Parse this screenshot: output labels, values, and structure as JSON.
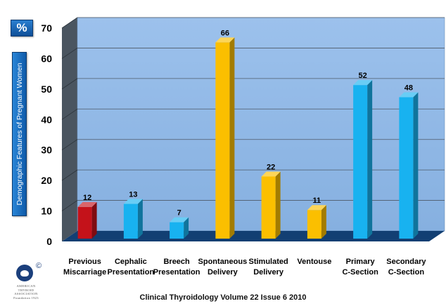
{
  "header": {
    "percent_label": "%"
  },
  "chart_data": {
    "type": "bar",
    "ylabel": "Demographic Features of Pregnant Women",
    "ylim": [
      0,
      70
    ],
    "yticks": [
      0,
      10,
      20,
      30,
      40,
      50,
      60,
      70
    ],
    "grid": true,
    "categories": [
      [
        "Previous",
        "Miscarriage"
      ],
      [
        "Cephalic",
        "Presentation"
      ],
      [
        "Breech",
        "Presentation"
      ],
      [
        "Spontaneous",
        "Delivery"
      ],
      [
        "Stimulated",
        "Delivery"
      ],
      [
        "Ventouse"
      ],
      [
        "Primary",
        "C-Section"
      ],
      [
        "Secondary",
        "C-Section"
      ]
    ],
    "values": [
      12,
      13,
      7,
      66,
      22,
      11,
      52,
      48
    ],
    "bar_colors": [
      "#c4121a",
      "#18b2f0",
      "#18b2f0",
      "#fbbf00",
      "#fbbf00",
      "#fbbf00",
      "#18b2f0",
      "#18b2f0"
    ],
    "plot_colors": {
      "wall": "#8fb8e6",
      "floor": "#123f73",
      "side_wall": "#4a5560"
    }
  },
  "footer": {
    "citation": "Clinical Thyroidology Volume 22 Issue 6 2010"
  },
  "logo": {
    "lines": [
      "AMERICAN",
      "THYROID",
      "ASSOCIATION",
      "Foundation 1923"
    ]
  }
}
